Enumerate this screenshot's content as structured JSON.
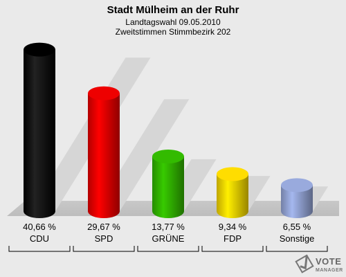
{
  "chart_data": {
    "type": "bar",
    "title": "Stadt Mülheim an der Ruhr",
    "subtitle_1": "Landtagswahl 09.05.2010",
    "subtitle_2": "Zweitstimmen Stimmbezirk 202",
    "categories": [
      "CDU",
      "SPD",
      "GRÜNE",
      "FDP",
      "Sonstige"
    ],
    "values": [
      40.66,
      29.67,
      13.77,
      9.34,
      6.55
    ],
    "value_labels": [
      "40,66 %",
      "29,67 %",
      "13,77 %",
      "9,34 %",
      "6,55 %"
    ],
    "colors": [
      "#000000",
      "#ee0000",
      "#33bb00",
      "#ffdd00",
      "#99aadd"
    ],
    "ylim": [
      0,
      42
    ],
    "grid": false,
    "legend": "none"
  },
  "branding": {
    "name": "VOTE",
    "sub": "MANAGER"
  }
}
